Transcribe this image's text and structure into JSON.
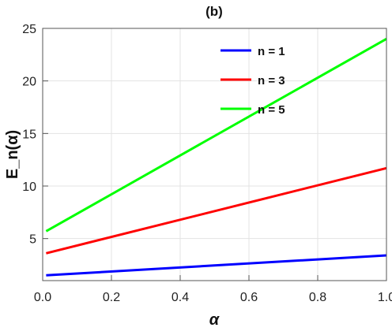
{
  "chart_data": {
    "type": "line",
    "title": "(b)",
    "xlabel": "α",
    "ylabel": "E_n(α)",
    "xlim": [
      0,
      1.0
    ],
    "ylim": [
      1,
      25
    ],
    "x_ticks": [
      0.0,
      0.2,
      0.4,
      0.6,
      0.8,
      1.0
    ],
    "x_tick_labels": [
      "0.0",
      "0.2",
      "0.4",
      "0.6",
      "0.8",
      "1.0"
    ],
    "y_ticks": [
      5,
      10,
      15,
      20,
      25
    ],
    "y_tick_labels": [
      "5",
      "10",
      "15",
      "20",
      "25"
    ],
    "grid": true,
    "legend_position": "top-right",
    "series": [
      {
        "name": "n = 1",
        "color": "#0000ff",
        "x": [
          0.01,
          1.0
        ],
        "y": [
          1.5,
          3.4
        ]
      },
      {
        "name": "n = 3",
        "color": "#ff0000",
        "x": [
          0.01,
          1.0
        ],
        "y": [
          3.6,
          11.7
        ]
      },
      {
        "name": "n = 5",
        "color": "#00ff00",
        "x": [
          0.01,
          1.0
        ],
        "y": [
          5.7,
          24.0
        ]
      }
    ]
  }
}
